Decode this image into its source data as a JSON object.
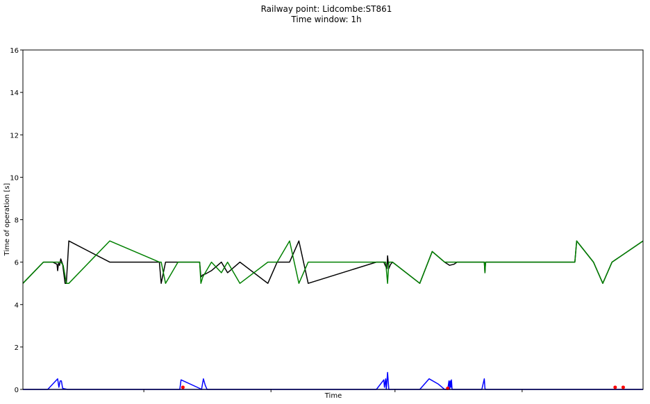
{
  "chart_data": {
    "type": "line",
    "title": "Railway point: Lidcombe:ST861",
    "subtitle": "Time window: 1h",
    "xlabel": "Time",
    "ylabel": "Time of operation [s]",
    "xlim": [
      0,
      100
    ],
    "ylim": [
      0,
      16
    ],
    "yticks": [
      0,
      2,
      4,
      6,
      8,
      10,
      12,
      14,
      16
    ],
    "xticks_unlabeled": [
      19.5,
      40,
      60,
      80.5
    ],
    "grid": false,
    "series": [
      {
        "color": "#000000",
        "x": [
          0,
          3.3,
          4.8,
          5.5,
          5.6,
          5.75,
          5.9,
          6.1,
          6.4,
          6.8,
          7.0,
          7.4,
          14,
          22,
          22.3,
          23,
          25,
          25.3,
          28.5,
          28.7,
          29,
          29.5,
          30.4,
          32,
          33,
          35,
          39.5,
          41,
          43,
          44.5,
          46,
          57,
          58.2,
          58.5,
          58.7,
          58.8,
          59,
          59.3,
          59.6,
          64,
          66,
          68,
          68.8,
          69.5,
          70,
          74.4,
          74.5,
          74.6,
          74.8,
          75,
          78,
          89,
          89.3,
          92,
          93.5,
          95,
          100
        ],
        "values": [
          5,
          6,
          6,
          5.9,
          5.6,
          5.95,
          5.85,
          6.15,
          5.9,
          5,
          5,
          7,
          6,
          6,
          5,
          6,
          6,
          6,
          6,
          5.3,
          5.4,
          5.45,
          5.6,
          6,
          5.5,
          6,
          5,
          6,
          6,
          7,
          5,
          6,
          6,
          5.8,
          5.7,
          6.3,
          5.7,
          5.9,
          6,
          5,
          6.5,
          6,
          5.85,
          5.9,
          6,
          6,
          5.5,
          6,
          6,
          6,
          6,
          6,
          7,
          6,
          5,
          6,
          7
        ]
      },
      {
        "color": "#008000",
        "x": [
          0,
          3.3,
          6.1,
          6.5,
          7.0,
          7.4,
          14,
          22,
          22.3,
          23,
          25,
          25.3,
          28.5,
          28.7,
          29,
          30.4,
          32,
          33,
          35,
          39.5,
          41,
          43,
          44.5,
          46,
          57,
          58.5,
          58.8,
          59,
          59.3,
          59.6,
          64,
          66,
          68,
          69,
          70,
          74.4,
          74.5,
          74.6,
          74.8,
          75,
          78,
          89,
          89.3,
          92,
          93.5,
          95,
          100
        ],
        "values": [
          5,
          6,
          6,
          5.85,
          5,
          5,
          7,
          6,
          6,
          5,
          6,
          6,
          6,
          5,
          5.3,
          6,
          5.5,
          6,
          5,
          6,
          6,
          7,
          5,
          6,
          6,
          6,
          5,
          6,
          6,
          6,
          5,
          6.5,
          6,
          6,
          6,
          6,
          5.5,
          6,
          6,
          6,
          6,
          6,
          7,
          6,
          5,
          6,
          7
        ]
      },
      {
        "color": "#0000ff",
        "x": [
          0,
          4,
          5.6,
          5.8,
          6.0,
          6.2,
          6.4,
          7.2,
          7.3,
          19,
          25.3,
          25.5,
          28.5,
          28.8,
          29.1,
          29.4,
          29.7,
          30.5,
          46,
          57,
          58.2,
          58.3,
          58.5,
          58.6,
          58.8,
          59,
          59.1,
          59.2,
          59.5,
          64,
          65.5,
          67,
          68,
          68.5,
          68.7,
          68.8,
          68.9,
          69,
          69.1,
          69.2,
          69.5,
          74,
          74.4,
          74.5,
          74.6,
          75,
          100
        ],
        "values": [
          0,
          0,
          0.5,
          0.1,
          0.4,
          0.4,
          0.05,
          0,
          0,
          0,
          0,
          0.45,
          0.05,
          0,
          0.5,
          0.2,
          0,
          0,
          0,
          0,
          0.45,
          0.1,
          0.5,
          0,
          0.8,
          0,
          0,
          0,
          0,
          0,
          0.5,
          0.25,
          0,
          0,
          0.4,
          0,
          0.4,
          0.1,
          0.45,
          0,
          0,
          0,
          0.5,
          0.05,
          0,
          0,
          0
        ]
      },
      {
        "color": "#0000aa",
        "x": [
          0,
          100
        ],
        "values": [
          0,
          0
        ]
      }
    ],
    "markers": {
      "color": "#ff0000",
      "x": [
        25.8,
        68.5,
        95.5,
        96.8
      ],
      "values": [
        0.1,
        0.05,
        0.1,
        0.1
      ]
    }
  }
}
